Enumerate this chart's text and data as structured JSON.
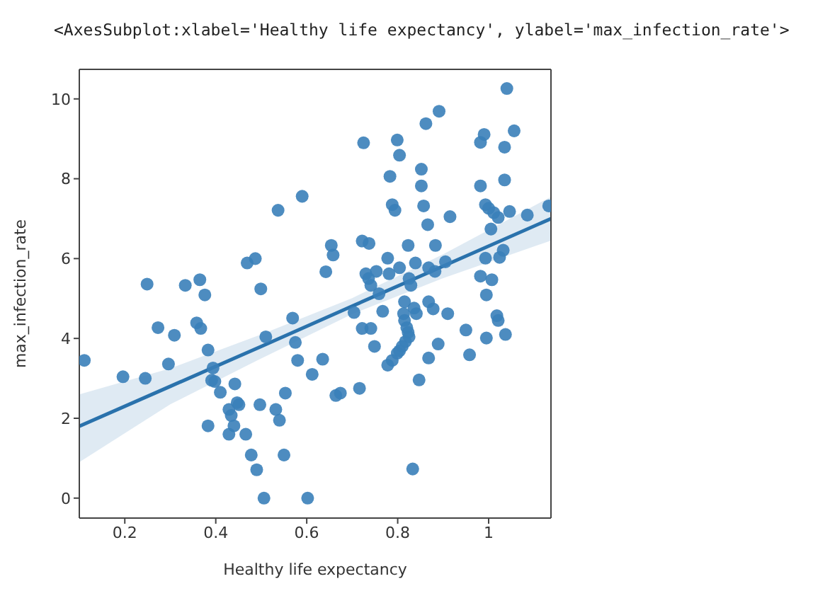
{
  "chart_data": {
    "type": "scatter",
    "xlabel": "Healthy life expectancy",
    "ylabel": "max_infection_rate",
    "annotations": [
      "<AxesSubplot:xlabel='Healthy life expectancy', ylabel='max_infection_rate'>"
    ],
    "xlim": [
      0.1,
      1.137
    ],
    "ylim": [
      -0.5,
      10.74
    ],
    "xticks": [
      0.2,
      0.4,
      0.6,
      0.8,
      1.0
    ],
    "yticks": [
      0,
      2,
      4,
      6,
      8,
      10
    ],
    "series": [
      {
        "marker": "circle",
        "color": "#3a7fb9",
        "x": [
          0.111,
          0.196,
          0.245,
          0.249,
          0.273,
          0.296,
          0.309,
          0.333,
          0.365,
          0.376,
          0.358,
          0.367,
          0.383,
          0.394,
          0.391,
          0.398,
          0.383,
          0.41,
          0.442,
          0.429,
          0.434,
          0.447,
          0.451,
          0.44,
          0.429,
          0.466,
          0.478,
          0.49,
          0.506,
          0.497,
          0.469,
          0.487,
          0.499,
          0.51,
          0.537,
          0.532,
          0.54,
          0.553,
          0.55,
          0.569,
          0.575,
          0.58,
          0.59,
          0.602,
          0.612,
          0.635,
          0.642,
          0.654,
          0.658,
          0.664,
          0.674,
          0.704,
          0.716,
          0.722,
          0.725,
          0.737,
          0.73,
          0.736,
          0.722,
          0.741,
          0.749,
          0.753,
          0.759,
          0.799,
          0.804,
          0.862,
          0.891,
          1.04,
          0.99,
          0.982,
          1.056,
          1.035,
          0.783,
          0.852,
          0.852,
          0.982,
          1.035,
          0.788,
          0.794,
          0.857,
          0.866,
          0.915,
          0.993,
          1.0,
          1.011,
          1.021,
          1.046,
          1.085,
          1.132,
          1.005,
          0.883,
          0.823,
          0.778,
          0.804,
          0.839,
          0.781,
          0.868,
          0.905,
          0.882,
          0.825,
          0.829,
          0.741,
          0.815,
          0.767,
          0.813,
          0.815,
          0.82,
          0.823,
          0.817,
          0.825,
          0.836,
          0.841,
          0.868,
          0.878,
          0.91,
          0.982,
          1.007,
          0.995,
          0.993,
          1.024,
          1.032,
          1.018,
          1.021,
          1.037,
          0.995,
          0.95,
          0.958,
          0.889,
          0.868,
          0.81,
          0.804,
          0.799,
          0.788,
          0.778,
          0.847,
          0.833
        ],
        "values": [
          3.45,
          3.04,
          3.0,
          5.36,
          4.27,
          3.36,
          4.08,
          5.33,
          5.47,
          5.09,
          4.39,
          4.25,
          3.71,
          3.26,
          2.95,
          2.92,
          1.81,
          2.65,
          2.86,
          2.22,
          2.07,
          2.39,
          2.34,
          1.81,
          1.6,
          1.6,
          1.08,
          0.71,
          0.0,
          2.34,
          5.89,
          6.0,
          5.24,
          4.04,
          7.21,
          2.22,
          1.95,
          2.63,
          1.08,
          4.51,
          3.9,
          3.45,
          7.56,
          0.0,
          3.1,
          3.48,
          5.67,
          6.33,
          6.09,
          2.57,
          2.63,
          4.65,
          2.75,
          6.44,
          8.9,
          6.38,
          5.62,
          5.5,
          4.25,
          4.25,
          3.8,
          5.68,
          5.12,
          8.97,
          8.59,
          9.38,
          9.69,
          10.26,
          9.11,
          8.91,
          9.2,
          8.79,
          8.06,
          8.24,
          7.82,
          7.82,
          7.97,
          7.35,
          7.21,
          7.32,
          6.85,
          7.05,
          7.35,
          7.26,
          7.15,
          7.03,
          7.18,
          7.09,
          7.32,
          6.74,
          6.33,
          6.33,
          6.01,
          5.77,
          5.89,
          5.62,
          5.77,
          5.92,
          5.68,
          5.5,
          5.33,
          5.33,
          4.92,
          4.68,
          4.62,
          4.45,
          4.27,
          4.15,
          3.92,
          4.04,
          4.76,
          4.62,
          4.92,
          4.74,
          4.62,
          5.56,
          5.47,
          5.09,
          6.01,
          6.03,
          6.21,
          4.57,
          4.45,
          4.1,
          4.01,
          4.21,
          3.59,
          3.86,
          3.51,
          3.8,
          3.69,
          3.63,
          3.45,
          3.33,
          2.96,
          0.73
        ]
      },
      {
        "type": "line",
        "color": "#2a72ac",
        "x": [
          0.1,
          0.3,
          0.5,
          0.7,
          0.9,
          1.137
        ],
        "values": [
          1.8,
          2.8,
          3.8,
          4.81,
          5.81,
          7.0
        ],
        "lower": [
          0.9,
          2.35,
          3.5,
          4.61,
          5.51,
          6.45
        ],
        "upper": [
          2.6,
          3.25,
          4.1,
          5.01,
          6.11,
          7.55
        ]
      }
    ]
  }
}
